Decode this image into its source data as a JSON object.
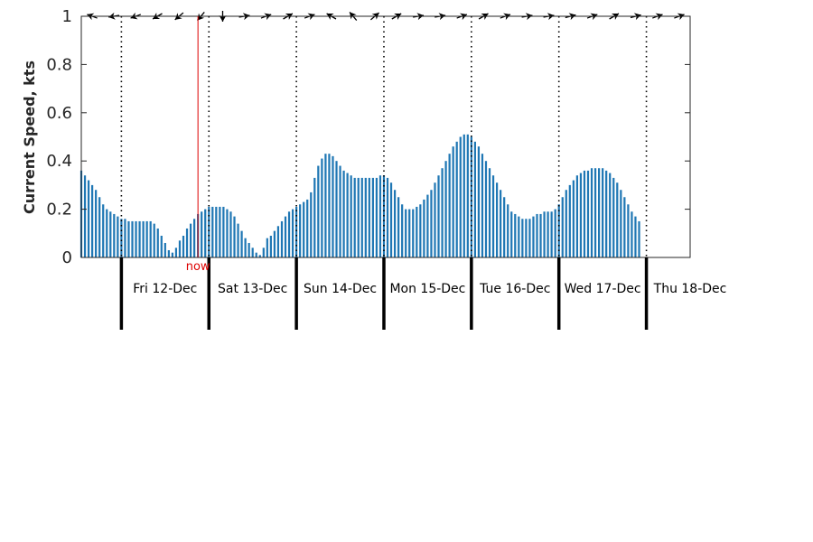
{
  "chart_data": {
    "type": "bar",
    "ylabel": "Current Speed, kts",
    "ylim": [
      0,
      1
    ],
    "yticks": [
      "0",
      "0.2",
      "0.4",
      "0.6",
      "0.8",
      "1"
    ],
    "xlim_hours": [
      -11,
      156
    ],
    "day_labels": [
      "Fri 12-Dec",
      "Sat 13-Dec",
      "Sun 14-Dec",
      "Mon 15-Dec",
      "Tue 16-Dec",
      "Wed 17-Dec",
      "Thu 18-Dec"
    ],
    "now_label": "now",
    "now_hour": 21,
    "bar_color": "#1f77b4",
    "now_color": "#dd0000",
    "direction_arrows_deg": [
      290,
      260,
      250,
      240,
      230,
      220,
      180,
      80,
      70,
      60,
      70,
      300,
      320,
      50,
      60,
      80,
      80,
      70,
      60,
      70,
      80,
      80,
      75,
      70,
      60,
      75,
      70,
      70
    ],
    "speed_hourly": [
      0.36,
      0.34,
      0.32,
      0.3,
      0.28,
      0.25,
      0.22,
      0.2,
      0.19,
      0.18,
      0.17,
      0.16,
      0.16,
      0.15,
      0.15,
      0.15,
      0.15,
      0.15,
      0.15,
      0.15,
      0.14,
      0.12,
      0.09,
      0.06,
      0.03,
      0.02,
      0.04,
      0.07,
      0.09,
      0.12,
      0.14,
      0.16,
      0.18,
      0.19,
      0.2,
      0.21,
      0.21,
      0.21,
      0.21,
      0.21,
      0.2,
      0.19,
      0.17,
      0.14,
      0.11,
      0.08,
      0.06,
      0.04,
      0.02,
      0.01,
      0.04,
      0.08,
      0.09,
      0.11,
      0.13,
      0.15,
      0.17,
      0.19,
      0.2,
      0.21,
      0.22,
      0.23,
      0.24,
      0.27,
      0.33,
      0.38,
      0.41,
      0.43,
      0.43,
      0.42,
      0.4,
      0.38,
      0.36,
      0.35,
      0.34,
      0.33,
      0.33,
      0.33,
      0.33,
      0.33,
      0.33,
      0.33,
      0.34,
      0.34,
      0.33,
      0.31,
      0.28,
      0.25,
      0.22,
      0.2,
      0.2,
      0.2,
      0.21,
      0.22,
      0.24,
      0.26,
      0.28,
      0.31,
      0.34,
      0.37,
      0.4,
      0.43,
      0.46,
      0.48,
      0.5,
      0.51,
      0.51,
      0.5,
      0.48,
      0.46,
      0.43,
      0.4,
      0.37,
      0.34,
      0.31,
      0.28,
      0.25,
      0.22,
      0.19,
      0.18,
      0.17,
      0.16,
      0.16,
      0.16,
      0.17,
      0.18,
      0.18,
      0.19,
      0.19,
      0.19,
      0.2,
      0.22,
      0.25,
      0.28,
      0.3,
      0.32,
      0.34,
      0.35,
      0.36,
      0.36,
      0.37,
      0.37,
      0.37,
      0.37,
      0.36,
      0.35,
      0.33,
      0.31,
      0.28,
      0.25,
      0.22,
      0.19,
      0.17,
      0.15
    ]
  }
}
